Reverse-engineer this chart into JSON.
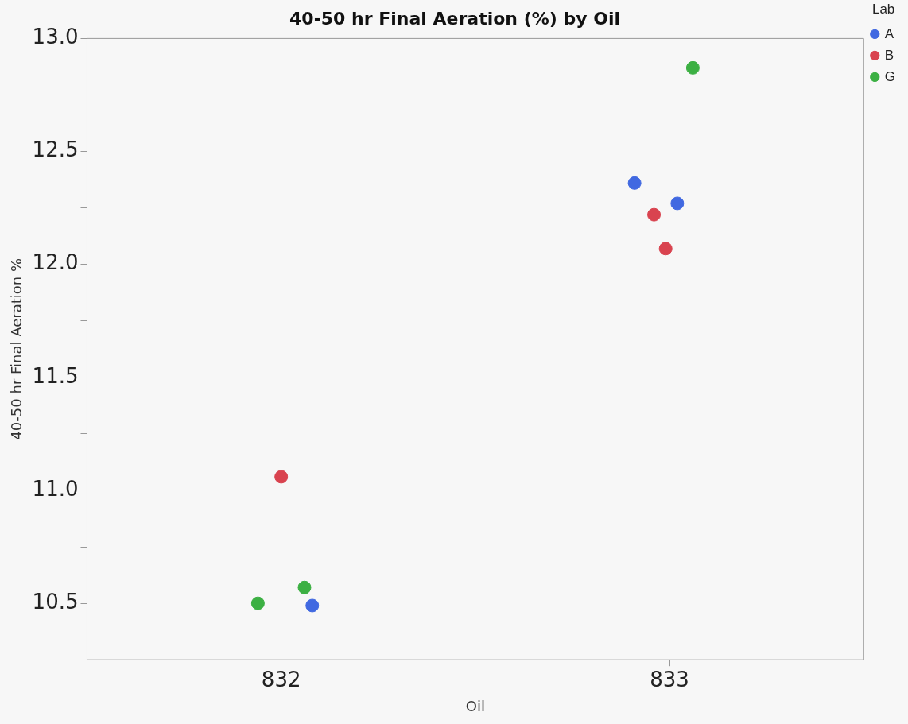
{
  "chart_data": {
    "type": "scatter",
    "title": "40-50 hr Final Aeration (%) by Oil",
    "xlabel": "Oil",
    "ylabel": "40-50 hr Final Aeration %",
    "legend_title": "Lab",
    "legend": "top right",
    "marker": "circle",
    "grid": false,
    "xlim": [
      831.5,
      833.5
    ],
    "xticks": [
      832,
      833
    ],
    "ylim": [
      10.25,
      13.0
    ],
    "yticks": [
      {
        "value": 10.5,
        "label": "10.5"
      },
      {
        "value": 10.75,
        "label": null
      },
      {
        "value": 11.0,
        "label": "11.0"
      },
      {
        "value": 11.25,
        "label": null
      },
      {
        "value": 11.5,
        "label": "11.5"
      },
      {
        "value": 11.75,
        "label": null
      },
      {
        "value": 12.0,
        "label": "12.0"
      },
      {
        "value": 12.25,
        "label": null
      },
      {
        "value": 12.5,
        "label": "12.5"
      },
      {
        "value": 12.75,
        "label": null
      },
      {
        "value": 13.0,
        "label": "13.0"
      }
    ],
    "series": [
      {
        "name": "A",
        "color": "#4169e1",
        "x": [
          832.08,
          832.91,
          833.02
        ],
        "values": [
          10.49,
          12.36,
          12.27
        ]
      },
      {
        "name": "B",
        "color": "#d9434f",
        "x": [
          832.0,
          832.96,
          832.99
        ],
        "values": [
          11.06,
          12.22,
          12.07
        ]
      },
      {
        "name": "G",
        "color": "#3cb043",
        "x": [
          831.94,
          832.06,
          833.06
        ],
        "values": [
          10.5,
          10.57,
          12.87
        ]
      }
    ]
  }
}
